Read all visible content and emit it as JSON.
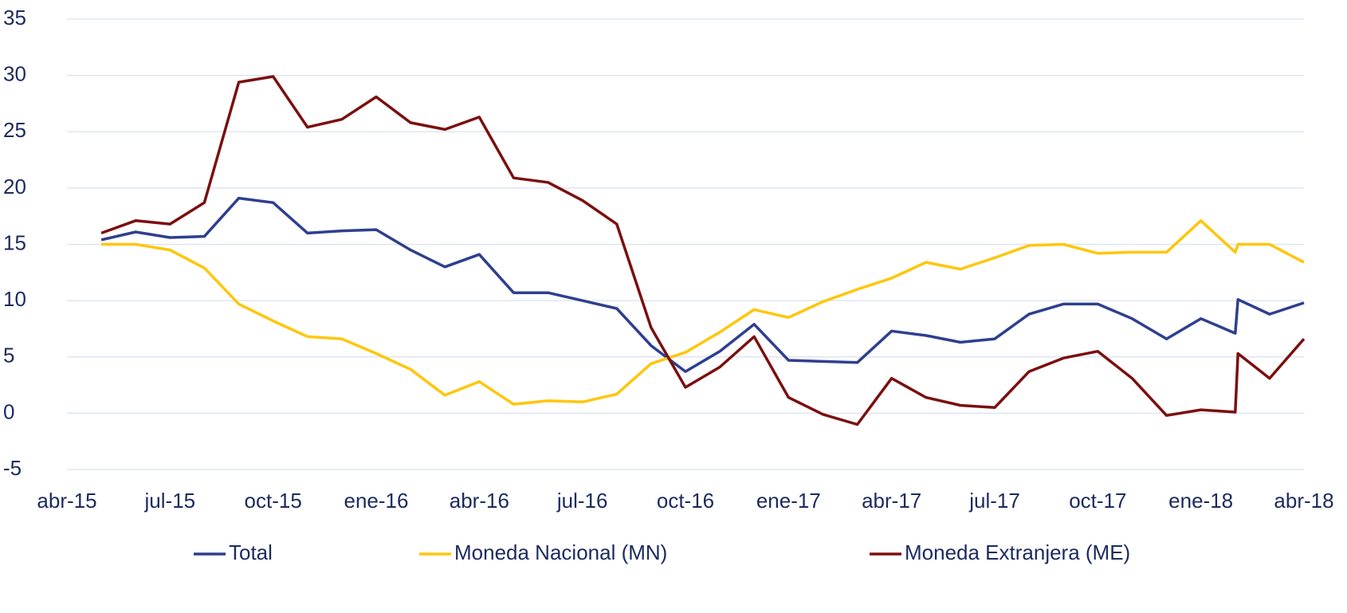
{
  "chart_data": {
    "type": "line",
    "x": [
      1,
      2,
      3,
      4,
      5,
      6,
      7,
      8,
      9,
      10,
      11,
      12,
      13,
      14,
      15,
      16,
      17,
      18,
      19,
      20,
      21,
      22,
      23,
      24,
      25,
      26,
      27,
      28,
      29,
      30,
      31,
      32,
      33,
      34,
      34.08,
      35,
      36
    ],
    "xlim": [
      0,
      36
    ],
    "xticks": [
      {
        "value": 0,
        "label": "abr-15"
      },
      {
        "value": 3,
        "label": "jul-15"
      },
      {
        "value": 6,
        "label": "oct-15"
      },
      {
        "value": 9,
        "label": "ene-16"
      },
      {
        "value": 12,
        "label": "abr-16"
      },
      {
        "value": 15,
        "label": "jul-16"
      },
      {
        "value": 18,
        "label": "oct-16"
      },
      {
        "value": 21,
        "label": "ene-17"
      },
      {
        "value": 24,
        "label": "abr-17"
      },
      {
        "value": 27,
        "label": "jul-17"
      },
      {
        "value": 30,
        "label": "oct-17"
      },
      {
        "value": 33,
        "label": "ene-18"
      },
      {
        "value": 36,
        "label": "abr-18"
      }
    ],
    "ylim": [
      -5,
      35
    ],
    "yticks": [
      -5,
      0,
      5,
      10,
      15,
      20,
      25,
      30,
      35
    ],
    "grid": true,
    "legend": "bottom",
    "series": [
      {
        "name": "Total",
        "color": "#2e3f8f",
        "values": [
          15.4,
          16.1,
          15.6,
          15.7,
          19.1,
          18.7,
          16.0,
          16.2,
          16.3,
          14.5,
          13.0,
          14.1,
          10.7,
          10.7,
          10.0,
          9.3,
          6.0,
          3.7,
          5.5,
          7.9,
          4.7,
          4.6,
          4.5,
          7.3,
          6.9,
          6.3,
          6.6,
          8.8,
          9.7,
          9.7,
          8.4,
          6.6,
          8.4,
          7.1,
          10.1,
          8.8,
          9.8
        ]
      },
      {
        "name": "Moneda Nacional (MN)",
        "color": "#ffc60b",
        "values": [
          15.0,
          15.0,
          14.5,
          12.9,
          9.7,
          8.2,
          6.8,
          6.6,
          5.3,
          3.9,
          1.6,
          2.8,
          0.8,
          1.1,
          1.0,
          1.7,
          4.4,
          5.4,
          7.2,
          9.2,
          8.5,
          9.9,
          11.0,
          12.0,
          13.4,
          12.8,
          13.8,
          14.9,
          15.0,
          14.2,
          14.3,
          14.3,
          17.1,
          14.3,
          15.0,
          15.0,
          13.4
        ]
      },
      {
        "name": "Moneda Extranjera (ME)",
        "color": "#7b0f0f",
        "values": [
          16.0,
          17.1,
          16.8,
          18.7,
          29.4,
          29.9,
          25.4,
          26.1,
          28.1,
          25.8,
          25.2,
          26.3,
          20.9,
          20.5,
          18.9,
          16.8,
          7.6,
          2.3,
          4.1,
          6.8,
          1.4,
          -0.1,
          -1.0,
          3.1,
          1.4,
          0.7,
          0.5,
          3.7,
          4.9,
          5.5,
          3.1,
          -0.2,
          0.3,
          0.1,
          5.3,
          3.1,
          6.6
        ]
      }
    ]
  }
}
